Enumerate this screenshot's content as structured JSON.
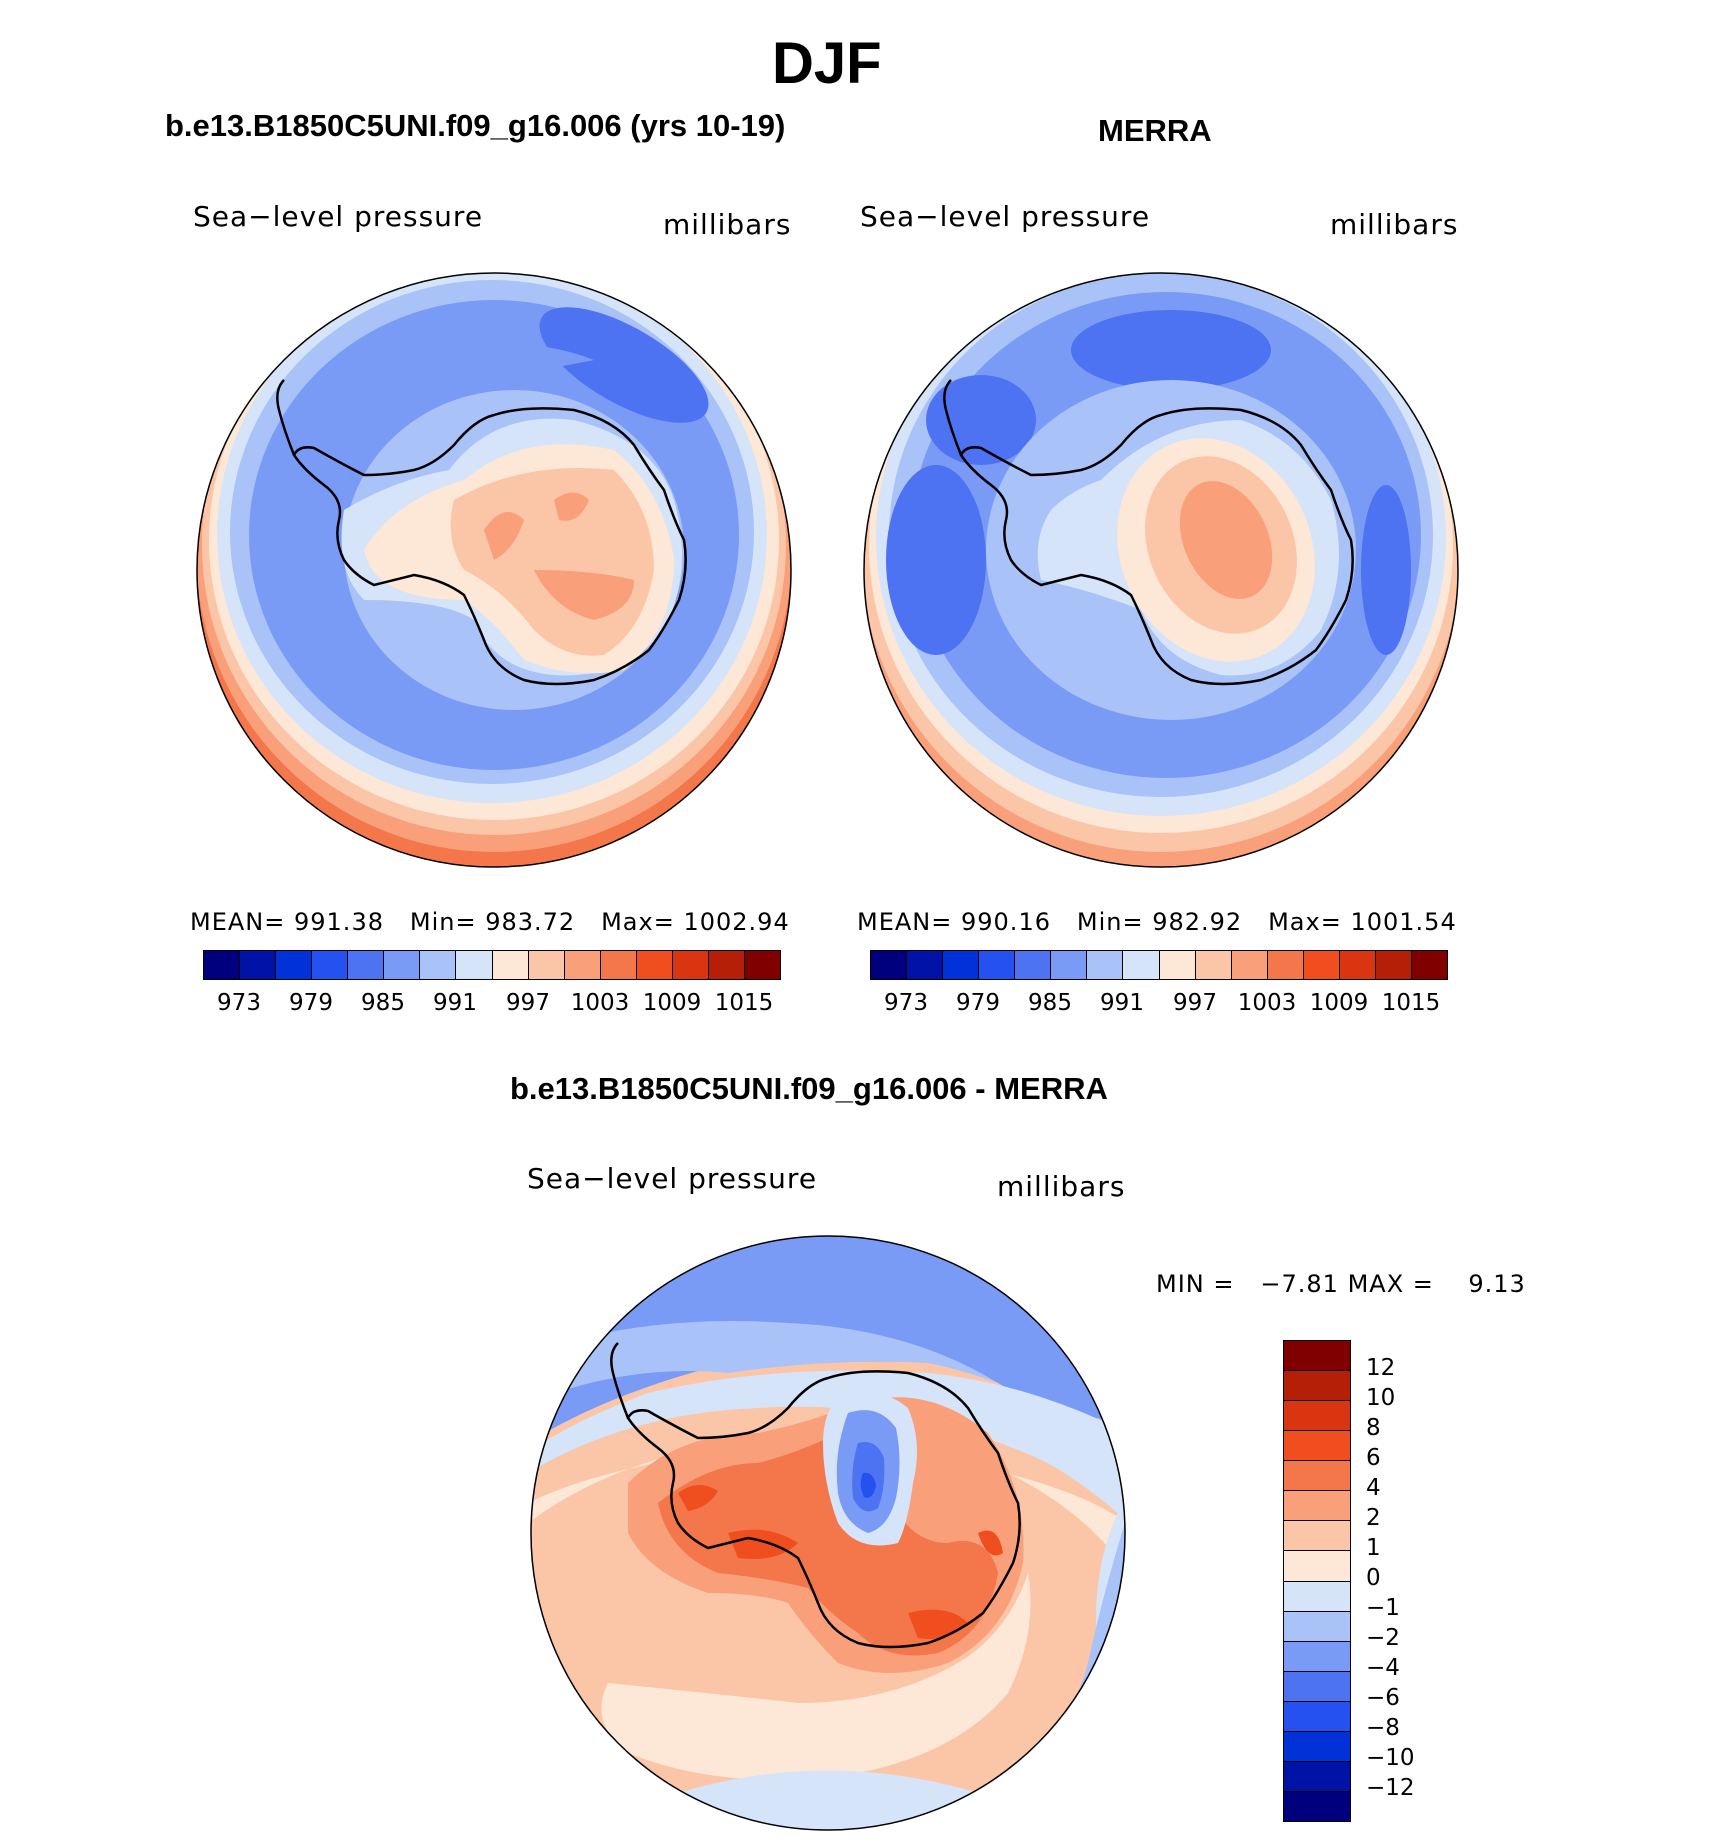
{
  "figure": {
    "season": "DJF",
    "panel1_title": "b.e13.B1850C5UNI.f09_g16.006 (yrs 10-19)",
    "panel2_title": "MERRA",
    "diff_title": "b.e13.B1850C5UNI.f09_g16.006 - MERRA"
  },
  "panels": [
    {
      "variable": "Sea−level pressure",
      "units": "millibars",
      "mean_label": "MEAN=",
      "mean": "991.38",
      "min_label": "Min=",
      "min": "983.72",
      "max_label": "Max=",
      "max": "1002.94"
    },
    {
      "variable": "Sea−level pressure",
      "units": "millibars",
      "mean_label": "MEAN=",
      "mean": "990.16",
      "min_label": "Min=",
      "min": "982.92",
      "max_label": "Max=",
      "max": "1001.54"
    }
  ],
  "diff_panel": {
    "variable": "Sea−level pressure",
    "units": "millibars",
    "min_label": "MIN =",
    "min": "−7.81",
    "max_label": "MAX =",
    "max": "9.13"
  },
  "colorbar_top": {
    "colors": [
      "#00007f",
      "#0013a6",
      "#0031d9",
      "#2451f0",
      "#4d72f2",
      "#7a9bf5",
      "#a9c2f7",
      "#d5e4f9",
      "#fde7d7",
      "#fbc6a8",
      "#f9a07a",
      "#f4774c",
      "#f04e1e",
      "#d93510",
      "#b51f07",
      "#800000"
    ],
    "labels": [
      "973",
      "979",
      "985",
      "991",
      "997",
      "1003",
      "1009",
      "1015"
    ]
  },
  "colorbar_diff": {
    "colors": [
      "#800000",
      "#b51f07",
      "#d93510",
      "#f04e1e",
      "#f4774c",
      "#f9a07a",
      "#fbc6a8",
      "#fde7d7",
      "#d5e4f9",
      "#a9c2f7",
      "#7a9bf5",
      "#4d72f2",
      "#2451f0",
      "#0031d9",
      "#0013a6",
      "#00007f"
    ],
    "labels": [
      "12",
      "10",
      "8",
      "6",
      "4",
      "2",
      "1",
      "0",
      "−1",
      "−2",
      "−4",
      "−6",
      "−8",
      "−10",
      "−12"
    ]
  }
}
